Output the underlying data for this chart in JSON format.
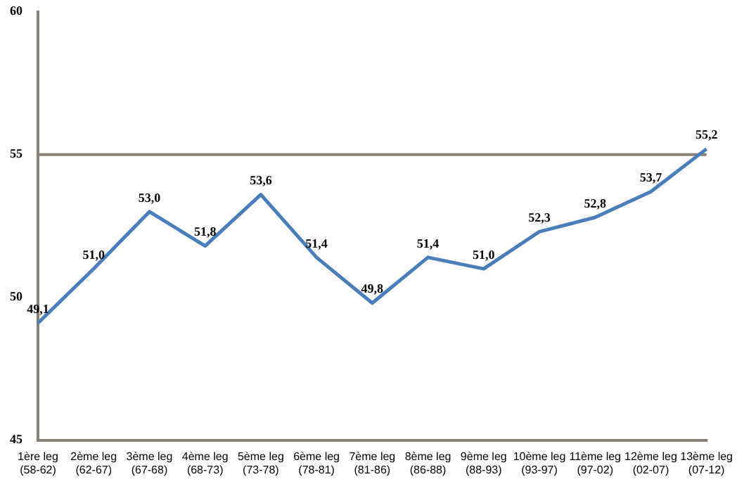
{
  "chart_data": {
    "type": "line",
    "categories": [
      "1ère leg (58-62)",
      "2ème leg (62-67)",
      "3ème leg (67-68)",
      "4ème leg (68-73)",
      "5ème leg (73-78)",
      "6ème leg (78-81)",
      "7ème leg (81-86)",
      "8ème leg (86-88)",
      "9ème leg (88-93)",
      "10ème leg (93-97)",
      "11ème leg (97-02)",
      "12ème leg (02-07)",
      "13ème leg (07-12)"
    ],
    "series": [
      {
        "color": "#4a7ebb",
        "values": [
          49.1,
          51.0,
          53.0,
          51.8,
          53.6,
          51.4,
          49.8,
          51.4,
          51.0,
          52.3,
          52.8,
          53.7,
          55.2
        ],
        "value_labels": [
          "49,1",
          "51,0",
          "53,0",
          "51,8",
          "53,6",
          "51,4",
          "49,8",
          "51,4",
          "51,0",
          "52,3",
          "52,8",
          "53,7",
          "55,2"
        ]
      }
    ],
    "ylim": [
      45,
      60
    ],
    "yticks": [
      45,
      50,
      55,
      60
    ],
    "ref_lines": [
      {
        "axis": "y",
        "value": 55,
        "color": "#868076"
      }
    ],
    "grid": false,
    "legend": false,
    "marker": "none",
    "line_style": "solid"
  }
}
